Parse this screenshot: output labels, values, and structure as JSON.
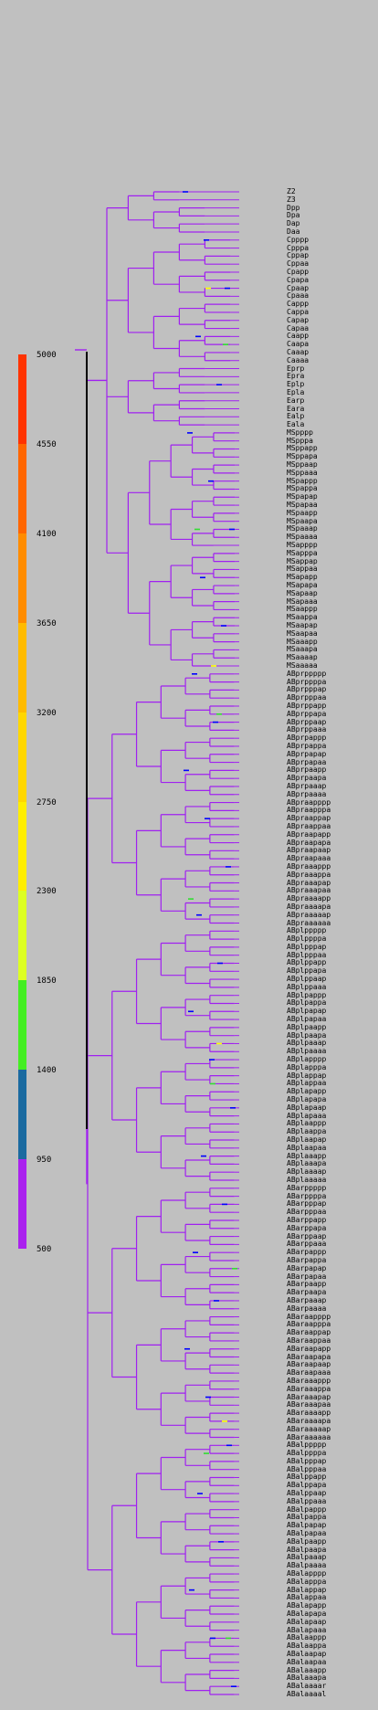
{
  "color_scale": {
    "labels": [
      "5000",
      "4550",
      "4100",
      "3650",
      "3200",
      "2750",
      "2300",
      "1850",
      "1400",
      "950",
      "500"
    ],
    "segments": [
      {
        "color": "#ff3300"
      },
      {
        "color": "#ff6600"
      },
      {
        "color": "#ff8c00"
      },
      {
        "color": "#ffbb00"
      },
      {
        "color": "#ffd700"
      },
      {
        "color": "#ffee00"
      },
      {
        "color": "#ddff22"
      },
      {
        "color": "#44ee22"
      },
      {
        "color": "#1a6aa0"
      },
      {
        "color": "#aa22ee"
      }
    ]
  },
  "colors": {
    "branch": "#a020f0",
    "root_trunk": "#000000",
    "accent_blue": "#0000ff",
    "accent_green": "#33dd33",
    "accent_yellow": "#ffff00"
  },
  "leaves": [
    "Z2",
    "Z3",
    "Dpp",
    "Dpa",
    "Dap",
    "Daa",
    "Cpppp",
    "Cpppa",
    "Cppap",
    "Cppaa",
    "Cpapp",
    "Cpapa",
    "Cpaap",
    "Cpaaa",
    "Cappp",
    "Cappa",
    "Capap",
    "Capaa",
    "Caapp",
    "Caapa",
    "Caaap",
    "Caaaa",
    "Eprp",
    "Epra",
    "Eplp",
    "Epla",
    "Earp",
    "Eara",
    "Ealp",
    "Eala",
    "MSpppp",
    "MSpppa",
    "MSppapp",
    "MSppapa",
    "MSppaap",
    "MSppaaa",
    "MSpappp",
    "MSpappa",
    "MSpapap",
    "MSpapaa",
    "MSpaapp",
    "MSpaapa",
    "MSpaaap",
    "MSpaaaa",
    "MSapppp",
    "MSapppa",
    "MSappap",
    "MSappaa",
    "MSapapp",
    "MSapapa",
    "MSapaap",
    "MSapaaa",
    "MSaappp",
    "MSaappa",
    "MSaapap",
    "MSaapaa",
    "MSaaapp",
    "MSaaapa",
    "MSaaaap",
    "MSaaaaa",
    "ABprppppp",
    "ABprppppa",
    "ABprpppap",
    "ABprpppaa",
    "ABprppapp",
    "ABprppapa",
    "ABprppaap",
    "ABprppaaa",
    "ABprpappp",
    "ABprpappa",
    "ABprpapap",
    "ABprpapaa",
    "ABprpaapp",
    "ABprpaapa",
    "ABprpaaap",
    "ABprpaaaa",
    "ABpraapppp",
    "ABpraapppa",
    "ABpraappap",
    "ABpraappaa",
    "ABpraapapp",
    "ABpraapapa",
    "ABpraapaap",
    "ABpraapaaa",
    "ABpraaappp",
    "ABpraaappa",
    "ABpraaapap",
    "ABpraaapaa",
    "ABpraaaapp",
    "ABpraaaapa",
    "ABpraaaaap",
    "ABpraaaaaa",
    "ABplppppp",
    "ABplppppa",
    "ABplpppap",
    "ABplpppaa",
    "ABplppapp",
    "ABplppapa",
    "ABplppaap",
    "ABplppaaa",
    "ABplpappp",
    "ABplpappa",
    "ABplpapap",
    "ABplpapaa",
    "ABplpaapp",
    "ABplpaapa",
    "ABplpaaap",
    "ABplpaaaa",
    "ABplapppp",
    "ABplapppa",
    "ABplappap",
    "ABplappaa",
    "ABplapapp",
    "ABplapapa",
    "ABplapaap",
    "ABplapaaa",
    "ABplaappp",
    "ABplaappa",
    "ABplaapap",
    "ABplaapaa",
    "ABplaaapp",
    "ABplaaapa",
    "ABplaaaap",
    "ABplaaaaa",
    "ABarppppp",
    "ABarppppa",
    "ABarpppap",
    "ABarpppaa",
    "ABarppapp",
    "ABarppapa",
    "ABarppaap",
    "ABarppaaa",
    "ABarpappp",
    "ABarpappa",
    "ABarpapap",
    "ABarpapaa",
    "ABarpaapp",
    "ABarpaapa",
    "ABarpaaap",
    "ABarpaaaa",
    "ABaraapppp",
    "ABaraapppa",
    "ABaraappap",
    "ABaraappaa",
    "ABaraapapp",
    "ABaraapapa",
    "ABaraapaap",
    "ABaraapaaa",
    "ABaraaappp",
    "ABaraaappa",
    "ABaraaapap",
    "ABaraaapaa",
    "ABaraaaapp",
    "ABaraaaapa",
    "ABaraaaaap",
    "ABaraaaaaa",
    "ABalppppp",
    "ABalppppa",
    "ABalpppap",
    "ABalpppaa",
    "ABalppapp",
    "ABalppapa",
    "ABalppaap",
    "ABalppaaa",
    "ABalpappp",
    "ABalpappa",
    "ABalpapap",
    "ABalpapaa",
    "ABalpaapp",
    "ABalpaapa",
    "ABalpaaap",
    "ABalpaaaa",
    "ABalapppp",
    "ABalapppa",
    "ABalappap",
    "ABalappaa",
    "ABalapapp",
    "ABalapapa",
    "ABalapaap",
    "ABalapaaa",
    "ABalaappp",
    "ABalaappa",
    "ABalaapap",
    "ABalaapaa",
    "ABalaaapp",
    "ABalaaapa",
    "ABalaaaar",
    "ABalaaaal"
  ]
}
